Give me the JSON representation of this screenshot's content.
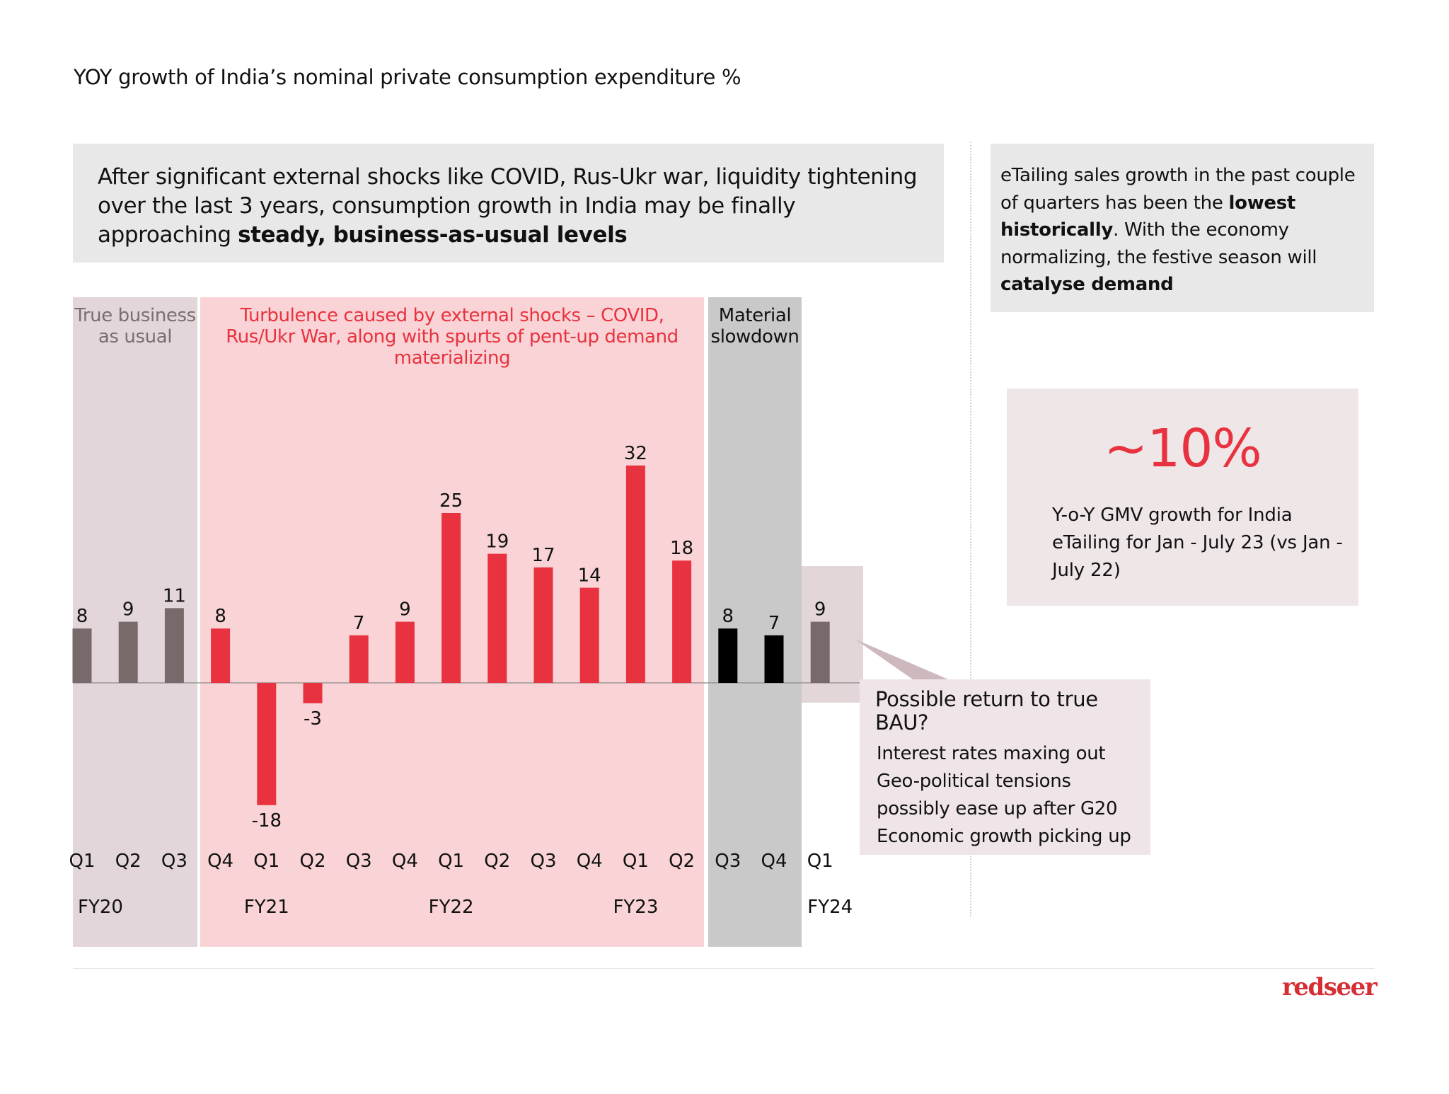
{
  "page": {
    "title": "YOY growth of India’s nominal private consumption expenditure %"
  },
  "summary": {
    "text_plain": "After significant external shocks like COVID, Rus-Ukr war, liquidity tightening over the last 3 years, consumption growth in India may be finally approaching ",
    "text_bold": "steady, business-as-usual levels"
  },
  "insight": {
    "part1": "eTailing sales growth in the past couple of quarters has been the ",
    "bold1": "lowest historically",
    "part2": ". With the economy normalizing, the festive season will ",
    "bold2": "catalyse demand"
  },
  "kpi": {
    "value": "~10%",
    "caption": "Y-o-Y GMV growth for India eTailing for Jan - July 23 (vs Jan - July 22)"
  },
  "callout": {
    "title": "Possible return to true BAU?",
    "items": [
      "Interest rates maxing out",
      "Geo-political tensions",
      "possibly ease up after G20",
      "Economic growth picking up"
    ]
  },
  "brand": {
    "logo_text": "redseer"
  },
  "colors": {
    "bau_bar": "#786a6b",
    "turbulence_bar": "#e8323f",
    "slowdown_bar": "#000000",
    "accent": "#e8323f",
    "logo": "#d52e34"
  },
  "chart_data": {
    "type": "bar",
    "title": "YOY growth of India’s nominal private consumption expenditure %",
    "xlabel": "",
    "ylabel": "",
    "ylim": [
      -18,
      32
    ],
    "grid": false,
    "categories": [
      "Q1",
      "Q2",
      "Q3",
      "Q4",
      "Q1",
      "Q2",
      "Q3",
      "Q4",
      "Q1",
      "Q2",
      "Q3",
      "Q4",
      "Q1",
      "Q2",
      "Q3",
      "Q4",
      "Q1"
    ],
    "fiscal_years": [
      {
        "label": "FY20",
        "start_index": 0
      },
      {
        "label": "FY21",
        "start_index": 4
      },
      {
        "label": "FY22",
        "start_index": 8
      },
      {
        "label": "FY23",
        "start_index": 12
      },
      {
        "label": "FY24",
        "start_index": 16
      }
    ],
    "values": [
      8,
      9,
      11,
      8,
      -18,
      -3,
      7,
      9,
      25,
      19,
      17,
      14,
      32,
      18,
      8,
      7,
      9
    ],
    "phases": [
      {
        "name": "True business as usual",
        "from": 0,
        "to": 2,
        "bar_color": "#786a6b",
        "band_color": "#e3d6da",
        "label_color": "#7b6e70"
      },
      {
        "name": "Turbulence caused by external shocks – COVID, Rus/Ukr War, along with spurts of pent-up demand materializing",
        "from": 3,
        "to": 13,
        "bar_color": "#e8323f",
        "band_color": "#f9d3d5",
        "label_color": "#e8323f"
      },
      {
        "name": "Material slowdown",
        "from": 14,
        "to": 15,
        "bar_color": "#000000",
        "band_color": "#c9c9c9",
        "label_color": "#111111"
      },
      {
        "name": "",
        "from": 16,
        "to": 16,
        "bar_color": "#786a6b",
        "band_color": "#e2d6d9",
        "label_color": "#111111"
      }
    ],
    "bau_label_lines": [
      "True business",
      "as usual"
    ],
    "slowdown_label_lines": [
      "Material",
      "slowdown"
    ]
  }
}
